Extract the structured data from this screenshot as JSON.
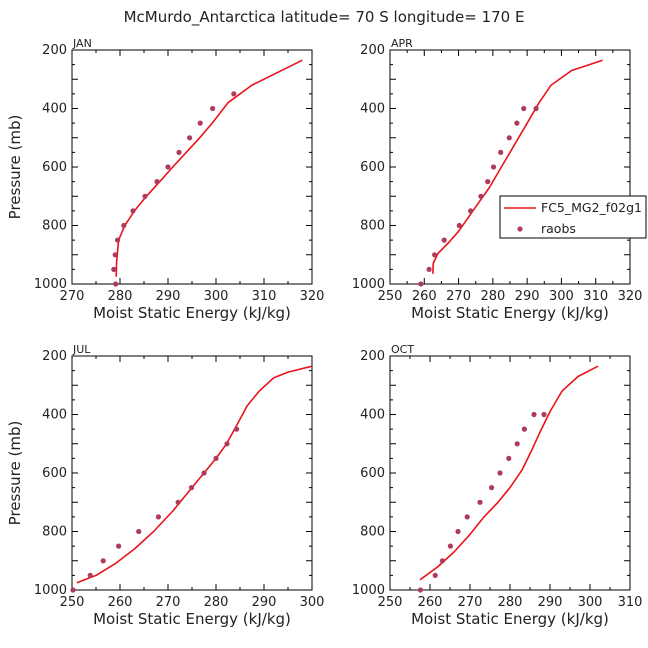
{
  "title": "McMurdo_Antarctica  latitude= 70 S longitude= 170 E",
  "colors": {
    "model": "#e8131b",
    "obs": "#b03a5b",
    "axis": "#000000"
  },
  "legend": {
    "model_label": "FC5_MG2_f02g1",
    "obs_label": "raobs",
    "placement": "right of APR panel"
  },
  "chart_data": [
    {
      "type": "line",
      "panel_label": "JAN",
      "xlabel": "Moist Static Energy (kJ/kg)",
      "ylabel": "Pressure (mb)",
      "xlim": [
        270,
        320
      ],
      "ylim": [
        1000,
        200
      ],
      "xticks": [
        270,
        280,
        290,
        300,
        310,
        320
      ],
      "xtick_labels": [
        "270",
        "280",
        "290",
        "300",
        "310",
        "320"
      ],
      "yticks": [
        200,
        400,
        600,
        800,
        1000
      ],
      "ytick_labels": [
        "200",
        "400",
        "600",
        "800",
        "1000"
      ],
      "series": [
        {
          "name": "FC5_MG2_f02g1",
          "kind": "line",
          "x": [
            279.2,
            279.3,
            279.7,
            281.0,
            283.0,
            285.5,
            288.3,
            291.0,
            293.8,
            296.6,
            299.2,
            302.5,
            307.5,
            318.0
          ],
          "y": [
            975,
            925,
            850,
            800,
            750,
            700,
            650,
            600,
            550,
            500,
            450,
            380,
            320,
            235
          ]
        },
        {
          "name": "raobs",
          "kind": "scatter",
          "x": [
            279.1,
            278.7,
            279.0,
            279.5,
            280.8,
            282.7,
            285.2,
            287.7,
            290.0,
            292.3,
            294.5,
            296.7,
            299.3,
            303.7
          ],
          "y": [
            1000,
            950,
            900,
            850,
            800,
            750,
            700,
            650,
            600,
            550,
            500,
            450,
            400,
            350
          ]
        }
      ]
    },
    {
      "type": "line",
      "panel_label": "APR",
      "xlabel": "Moist Static Energy (kJ/kg)",
      "ylabel": "",
      "xlim": [
        250,
        320
      ],
      "ylim": [
        1000,
        200
      ],
      "xticks": [
        250,
        260,
        270,
        280,
        290,
        300,
        310,
        320
      ],
      "xtick_labels": [
        "250",
        "260",
        "270",
        "280",
        "290",
        "300",
        "310",
        "320"
      ],
      "yticks": [
        200,
        400,
        600,
        800,
        1000
      ],
      "ytick_labels": [
        "200",
        "400",
        "600",
        "800",
        "1000"
      ],
      "series": [
        {
          "name": "FC5_MG2_f02g1",
          "kind": "line",
          "x": [
            262.5,
            262.6,
            264.0,
            267.0,
            270.0,
            273.0,
            276.0,
            279.0,
            282.0,
            285.0,
            288.0,
            291.0,
            293.5,
            297.0,
            303.0,
            312.0
          ],
          "y": [
            965,
            930,
            895,
            860,
            820,
            770,
            720,
            670,
            610,
            550,
            490,
            430,
            380,
            320,
            270,
            235
          ]
        },
        {
          "name": "raobs",
          "kind": "scatter",
          "x": [
            259.0,
            261.4,
            263.0,
            265.8,
            270.2,
            273.5,
            276.5,
            278.5,
            280.2,
            282.3,
            284.8,
            287.0,
            289.0,
            292.6
          ],
          "y": [
            1000,
            950,
            900,
            850,
            800,
            750,
            700,
            650,
            600,
            550,
            500,
            450,
            400,
            400
          ]
        }
      ]
    },
    {
      "type": "line",
      "panel_label": "JUL",
      "xlabel": "Moist Static Energy (kJ/kg)",
      "ylabel": "Pressure (mb)",
      "xlim": [
        250,
        300
      ],
      "ylim": [
        1000,
        200
      ],
      "xticks": [
        250,
        260,
        270,
        280,
        290,
        300
      ],
      "xtick_labels": [
        "250",
        "260",
        "270",
        "280",
        "290",
        "300"
      ],
      "yticks": [
        200,
        400,
        600,
        800,
        1000
      ],
      "ytick_labels": [
        "200",
        "400",
        "600",
        "800",
        "1000"
      ],
      "series": [
        {
          "name": "FC5_MG2_f02g1",
          "kind": "line",
          "x": [
            251.0,
            255.0,
            259.0,
            263.0,
            267.0,
            271.0,
            274.5,
            277.5,
            280.0,
            282.2,
            284.2,
            286.5,
            289.0,
            292.0,
            295.0,
            300.0
          ],
          "y": [
            975,
            950,
            910,
            860,
            800,
            730,
            660,
            600,
            550,
            500,
            440,
            370,
            320,
            275,
            255,
            235
          ]
        },
        {
          "name": "raobs",
          "kind": "scatter",
          "x": [
            250.2,
            253.8,
            256.5,
            259.7,
            263.9,
            268.0,
            272.1,
            274.9,
            277.5,
            280.0,
            282.3,
            284.3
          ],
          "y": [
            1000,
            950,
            900,
            850,
            800,
            750,
            700,
            650,
            600,
            550,
            500,
            450
          ]
        }
      ]
    },
    {
      "type": "line",
      "panel_label": "OCT",
      "xlabel": "Moist Static Energy (kJ/kg)",
      "ylabel": "",
      "xlim": [
        250,
        310
      ],
      "ylim": [
        1000,
        200
      ],
      "xticks": [
        250,
        260,
        270,
        280,
        290,
        300,
        310
      ],
      "xtick_labels": [
        "250",
        "260",
        "270",
        "280",
        "290",
        "300",
        "310"
      ],
      "yticks": [
        200,
        400,
        600,
        800,
        1000
      ],
      "ytick_labels": [
        "200",
        "400",
        "600",
        "800",
        "1000"
      ],
      "series": [
        {
          "name": "FC5_MG2_f02g1",
          "kind": "line",
          "x": [
            257.5,
            262.0,
            266.0,
            270.0,
            273.5,
            277.0,
            280.0,
            283.0,
            285.5,
            287.5,
            290.0,
            293.0,
            297.0,
            302.0
          ],
          "y": [
            965,
            920,
            870,
            810,
            750,
            700,
            650,
            590,
            520,
            460,
            390,
            320,
            270,
            235
          ]
        },
        {
          "name": "raobs",
          "kind": "scatter",
          "x": [
            257.6,
            261.3,
            263.1,
            265.1,
            267.0,
            269.3,
            272.5,
            275.4,
            277.5,
            279.7,
            281.8,
            283.6,
            286.0,
            288.5
          ],
          "y": [
            1000,
            950,
            900,
            850,
            800,
            750,
            700,
            650,
            600,
            550,
            500,
            450,
            400,
            400
          ]
        }
      ]
    }
  ]
}
